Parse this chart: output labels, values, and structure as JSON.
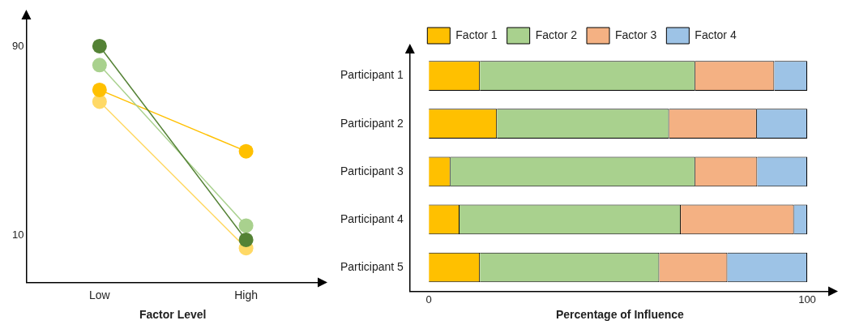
{
  "chart_data": [
    {
      "type": "line",
      "xlabel": "Factor Level",
      "categories": [
        "Low",
        "High"
      ],
      "series": [
        {
          "color": "#548235",
          "values": [
            90,
            8
          ]
        },
        {
          "color": "#a9d18e",
          "values": [
            82,
            14
          ]
        },
        {
          "color": "#ffc000",
          "values": [
            71.5,
            45.5
          ]
        },
        {
          "color": "#ffd966",
          "values": [
            66.5,
            4.5
          ]
        }
      ],
      "ylim": [
        -10,
        102
      ],
      "yticks": [
        10,
        90
      ],
      "legend": false,
      "marker": "circle",
      "line_style": "solid"
    },
    {
      "type": "bar",
      "orientation": "horizontal",
      "stacked": true,
      "xlabel": "Percentage of Influence",
      "categories": [
        "Participant 1",
        "Participant 2",
        "Participant 3",
        "Participant 4",
        "Participant 5"
      ],
      "series": [
        {
          "name": "Factor 1",
          "color": "#ffc000",
          "values": [
            13.5,
            18,
            5.7,
            8.1,
            13.5
          ]
        },
        {
          "name": "Factor 2",
          "color": "#a9d18e",
          "values": [
            56.9,
            45.5,
            64.7,
            58.5,
            47.4
          ]
        },
        {
          "name": "Factor 3",
          "color": "#f4b183",
          "values": [
            20.9,
            23.2,
            16.4,
            29.9,
            18
          ]
        },
        {
          "name": "Factor 4",
          "color": "#9dc3e6",
          "values": [
            8.7,
            13.3,
            13.2,
            3.5,
            21.1
          ]
        }
      ],
      "xlim": [
        -5,
        106
      ],
      "xticks": [
        0,
        100
      ],
      "legend": "top"
    }
  ]
}
